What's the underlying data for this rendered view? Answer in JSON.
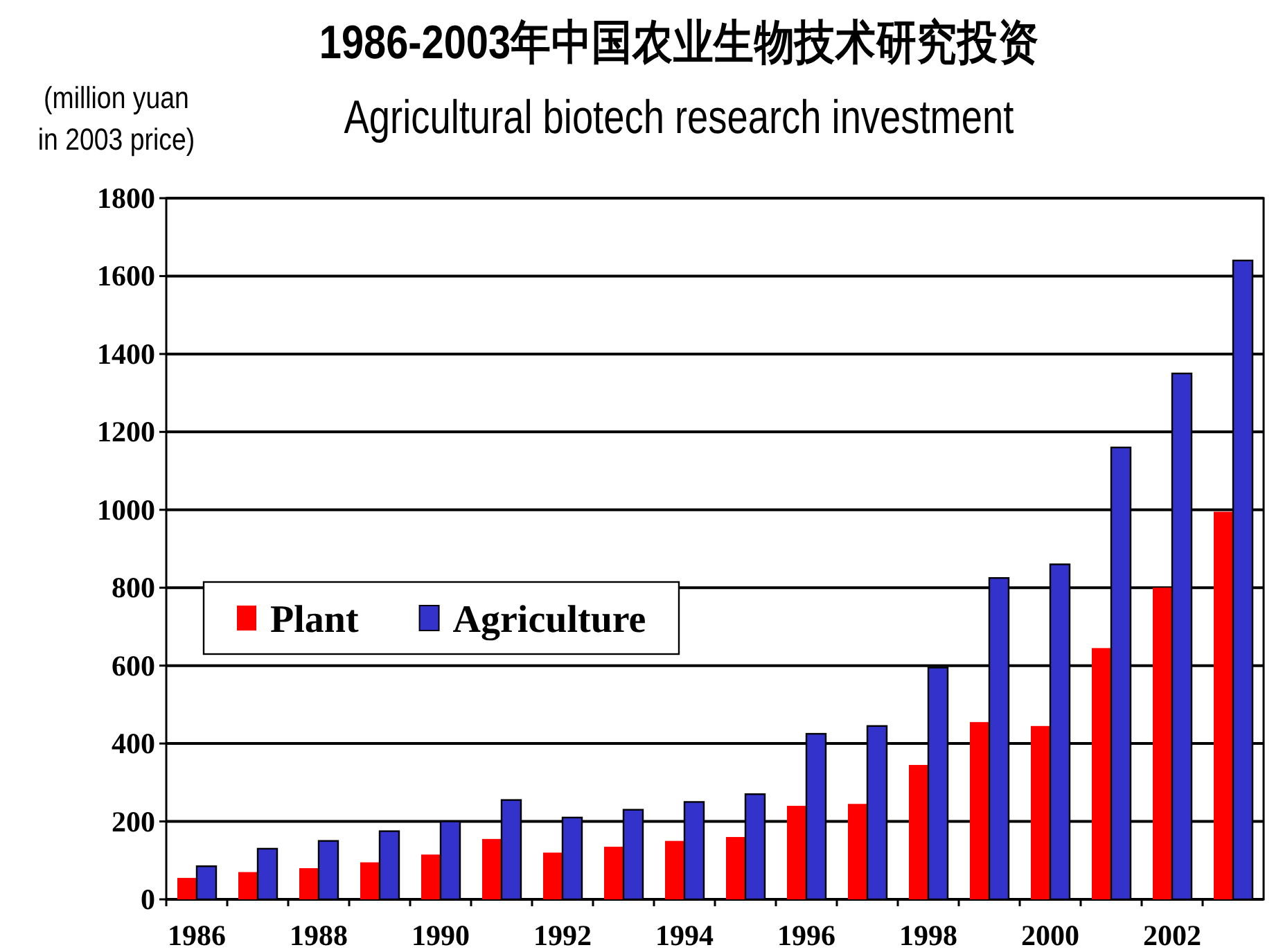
{
  "chart_data": {
    "type": "bar",
    "title": "1986-2003年中国农业生物技术研究投资",
    "subtitle": "Agricultural biotech research investment",
    "ylabel": "(million yuan\nin 2003 price)",
    "categories": [
      "1986",
      null,
      "1988",
      null,
      "1990",
      null,
      "1992",
      null,
      "1994",
      null,
      "1996",
      null,
      "1998",
      null,
      "2000",
      null,
      "2002",
      null
    ],
    "series": [
      {
        "name": "Plant",
        "color": "#ff0000",
        "values": [
          55,
          70,
          80,
          95,
          115,
          155,
          120,
          135,
          150,
          160,
          240,
          245,
          345,
          455,
          445,
          645,
          800,
          995
        ]
      },
      {
        "name": "Agriculture",
        "color": "#3333cc",
        "values": [
          85,
          130,
          150,
          175,
          200,
          255,
          210,
          230,
          250,
          270,
          425,
          445,
          595,
          825,
          860,
          1160,
          1350,
          1640
        ]
      }
    ],
    "ylim": [
      0,
      1800
    ],
    "yticks": [
      0,
      200,
      400,
      600,
      800,
      1000,
      1200,
      1400,
      1600,
      1800
    ],
    "grid": "y",
    "legend": "left"
  }
}
